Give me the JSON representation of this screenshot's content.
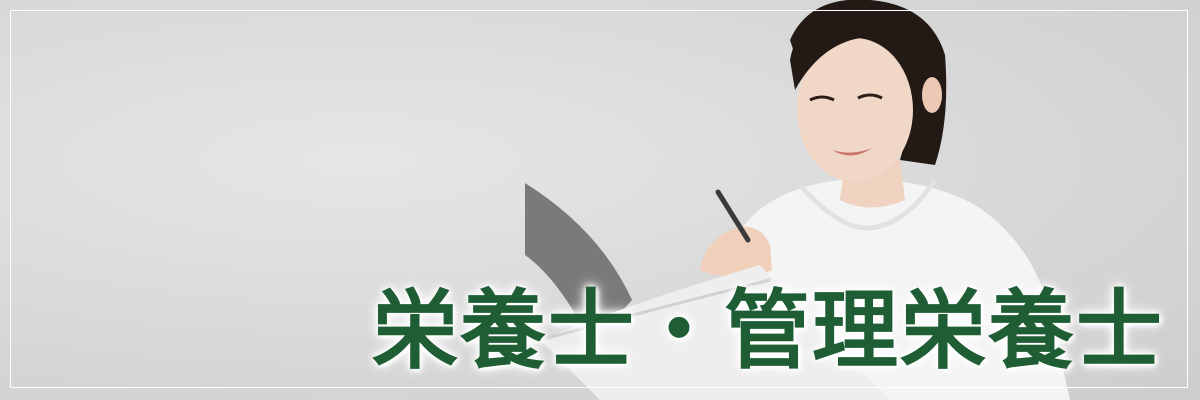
{
  "banner": {
    "title": "栄養士・管理栄養士",
    "title_color": "#1f5e35",
    "frame_color": "#ffffff",
    "photo_icon": "nutritionist-photo-icon"
  }
}
